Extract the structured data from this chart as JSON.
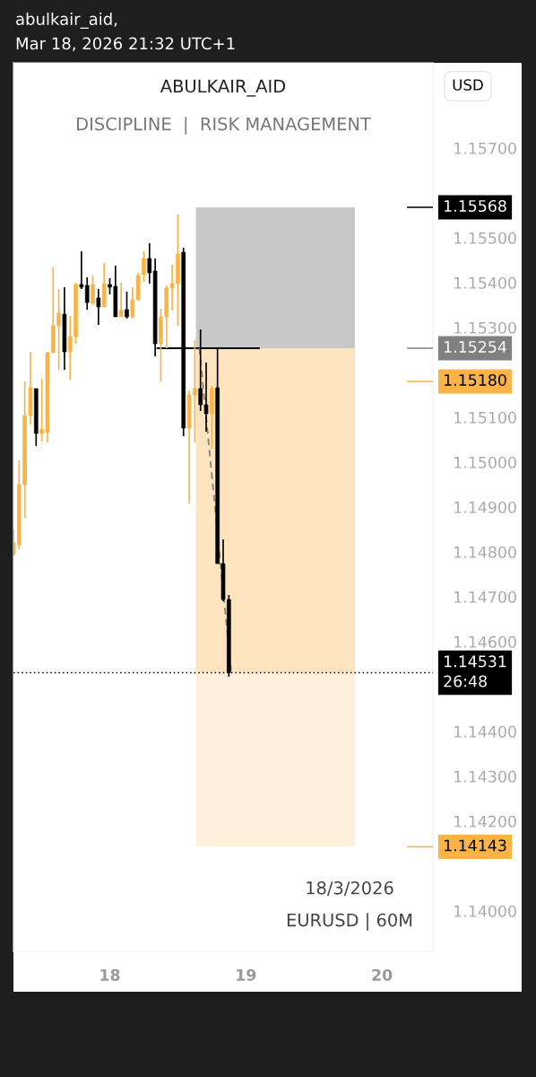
{
  "chart_data": {
    "type": "candlestick",
    "title": "ABULKAIR_AID",
    "subtitle": "DISCIPLINE  |  RISK MANAGEMENT",
    "annotations": [
      "abulkair_aid,",
      "Mar 18, 2026 21:32 UTC+1",
      "USD",
      "18/3/2026",
      "EURUSD | 60M"
    ],
    "x": [
      "2026-03-17T07:00",
      "2026-03-17T08:00",
      "2026-03-17T09:00",
      "2026-03-17T10:00",
      "2026-03-17T11:00",
      "2026-03-17T12:00",
      "2026-03-17T13:00",
      "2026-03-17T14:00",
      "2026-03-17T15:00",
      "2026-03-17T16:00",
      "2026-03-17T17:00",
      "2026-03-17T18:00",
      "2026-03-17T19:00",
      "2026-03-17T20:00",
      "2026-03-17T21:00",
      "2026-03-17T22:00",
      "2026-03-17T23:00",
      "2026-03-18T00:00",
      "2026-03-18T01:00",
      "2026-03-18T02:00",
      "2026-03-18T03:00",
      "2026-03-18T04:00",
      "2026-03-18T05:00",
      "2026-03-18T06:00",
      "2026-03-18T07:00",
      "2026-03-18T08:00",
      "2026-03-18T09:00",
      "2026-03-18T10:00",
      "2026-03-18T11:00",
      "2026-03-18T12:00",
      "2026-03-18T13:00",
      "2026-03-18T14:00",
      "2026-03-18T15:00",
      "2026-03-18T16:00",
      "2026-03-18T17:00",
      "2026-03-18T18:00",
      "2026-03-18T19:00",
      "2026-03-18T20:00",
      "2026-03-18T21:00"
    ],
    "ohlc": [
      [
        1.14794,
        1.1485,
        1.1479,
        1.1482
      ],
      [
        1.14816,
        1.15004,
        1.14806,
        1.1495
      ],
      [
        1.1495,
        1.1518,
        1.14876,
        1.15104
      ],
      [
        1.15104,
        1.15246,
        1.15084,
        1.15166
      ],
      [
        1.15164,
        1.15164,
        1.15036,
        1.15064
      ],
      [
        1.15064,
        1.15186,
        1.15046,
        1.15074
      ],
      [
        1.15066,
        1.15246,
        1.15044,
        1.15244
      ],
      [
        1.15244,
        1.15434,
        1.15244,
        1.15304
      ],
      [
        1.15304,
        1.15386,
        1.15206,
        1.15332
      ],
      [
        1.1533,
        1.1539,
        1.15206,
        1.15246
      ],
      [
        1.15246,
        1.15326,
        1.15184,
        1.1528
      ],
      [
        1.1528,
        1.154,
        1.15264,
        1.15396
      ],
      [
        1.15396,
        1.1547,
        1.15386,
        1.1539
      ],
      [
        1.15394,
        1.15412,
        1.1534,
        1.15356
      ],
      [
        1.15354,
        1.15416,
        1.1535,
        1.15396
      ],
      [
        1.15366,
        1.15386,
        1.15306,
        1.15346
      ],
      [
        1.15346,
        1.15444,
        1.15346,
        1.15398
      ],
      [
        1.15396,
        1.1541,
        1.15374,
        1.1539
      ],
      [
        1.15392,
        1.15438,
        1.15324,
        1.15324
      ],
      [
        1.15324,
        1.154,
        1.15324,
        1.15338
      ],
      [
        1.1534,
        1.1538,
        1.1532,
        1.15324
      ],
      [
        1.15324,
        1.1539,
        1.1532,
        1.15362
      ],
      [
        1.15362,
        1.15422,
        1.1536,
        1.15416
      ],
      [
        1.15418,
        1.1547,
        1.15402,
        1.15454
      ],
      [
        1.15454,
        1.15488,
        1.15398,
        1.15422
      ],
      [
        1.15426,
        1.15454,
        1.15236,
        1.15264
      ],
      [
        1.15264,
        1.15342,
        1.1518,
        1.15324
      ],
      [
        1.15324,
        1.15394,
        1.15254,
        1.15388
      ],
      [
        1.15388,
        1.1544,
        1.15338,
        1.15398
      ],
      [
        1.15398,
        1.15552,
        1.15304,
        1.15464
      ],
      [
        1.15468,
        1.15478,
        1.15058,
        1.15076
      ],
      [
        1.15076,
        1.1516,
        1.14908,
        1.1515
      ],
      [
        1.1515,
        1.15272,
        1.15044,
        1.15164
      ],
      [
        1.15164,
        1.15296,
        1.15114,
        1.15128
      ],
      [
        1.15128,
        1.15222,
        1.15068,
        1.15108
      ],
      [
        1.15108,
        1.1517,
        1.1503,
        1.15164
      ],
      [
        1.15166,
        1.15254,
        1.14774,
        1.14774
      ],
      [
        1.14774,
        1.14828,
        1.1469,
        1.14694
      ],
      [
        1.14694,
        1.14704,
        1.14522,
        1.14531
      ]
    ],
    "colors": [
      "#f9b347",
      "#f9b347",
      "#f9b347",
      "#f9b347",
      "#000000",
      "#f9b347",
      "#f9b347",
      "#f9b347",
      "#f9b347",
      "#000000",
      "#f9b347",
      "#f9b347",
      "#000000",
      "#000000",
      "#f9b347",
      "#000000",
      "#f9b347",
      "#000000",
      "#000000",
      "#f9b347",
      "#000000",
      "#f9b347",
      "#f9b347",
      "#f9b347",
      "#000000",
      "#000000",
      "#f9b347",
      "#f9b347",
      "#f9b347",
      "#f9b347",
      "#000000",
      "#f9b347",
      "#f9b347",
      "#000000",
      "#000000",
      "#f9b347",
      "#000000",
      "#000000",
      "#000000"
    ],
    "series": [
      {
        "type": "line",
        "color": "#000000",
        "line_style": "solid",
        "x": [
          "2026-03-18T08:24",
          "2026-03-19T02:18"
        ],
        "values": [
          1.15254,
          1.15254
        ]
      },
      {
        "type": "line",
        "color": "#808080",
        "line_style": "dashed",
        "x": [
          "2026-03-18T15:48",
          "2026-03-18T21:24"
        ],
        "values": [
          1.15254,
          1.14534
        ]
      }
    ],
    "xlim": [
      "2026-03-17T07:00",
      "2026-03-20T09:00"
    ],
    "xticks": [
      {
        "value": "2026-03-18",
        "label": "18"
      },
      {
        "value": "2026-03-19",
        "label": "19"
      },
      {
        "value": "2026-03-20",
        "label": "20"
      }
    ],
    "ylim": [
      1.1391,
      1.1589
    ],
    "yticks": [
      {
        "value": 1.157,
        "label": "1.15700"
      },
      {
        "value": 1.155,
        "label": "1.15500"
      },
      {
        "value": 1.154,
        "label": "1.15400"
      },
      {
        "value": 1.153,
        "label": "1.15300"
      },
      {
        "value": 1.151,
        "label": "1.15100"
      },
      {
        "value": 1.15,
        "label": "1.15000"
      },
      {
        "value": 1.149,
        "label": "1.14900"
      },
      {
        "value": 1.148,
        "label": "1.14800"
      },
      {
        "value": 1.147,
        "label": "1.14700"
      },
      {
        "value": 1.146,
        "label": "1.14600"
      },
      {
        "value": 1.144,
        "label": "1.14400"
      },
      {
        "value": 1.143,
        "label": "1.14300"
      },
      {
        "value": 1.142,
        "label": "1.14200"
      },
      {
        "value": 1.14,
        "label": "1.14000"
      }
    ],
    "bands": [
      {
        "axis": "y",
        "from": 1.15254,
        "to": 1.15568,
        "color": "#c8c8c8"
      },
      {
        "axis": "y",
        "from": 1.14531,
        "to": 1.15254,
        "color": "#fde4bf"
      },
      {
        "axis": "y",
        "from": 1.14143,
        "to": 1.14531,
        "color": "#fef0dc"
      }
    ],
    "ref_lines": [
      {
        "axis": "y",
        "value": 1.15568,
        "label": "1.15568",
        "color": "#000000",
        "line_style": "solid"
      },
      {
        "axis": "y",
        "value": 1.15254,
        "label": "1.15254",
        "color": "#808080",
        "line_style": "solid"
      },
      {
        "axis": "y",
        "value": 1.1518,
        "label": "1.15180",
        "color": "#f9b347",
        "line_style": "solid"
      },
      {
        "axis": "y",
        "value": 1.14531,
        "label": "1.14531\n26:48",
        "color": "#000000",
        "line_style": "dotted"
      },
      {
        "axis": "y",
        "value": 1.14143,
        "label": "1.14143",
        "color": "#f9b347",
        "line_style": "solid"
      }
    ],
    "grid": false
  }
}
